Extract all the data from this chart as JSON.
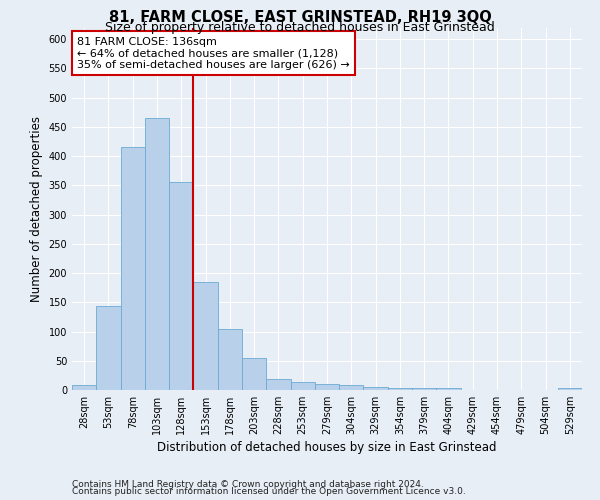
{
  "title": "81, FARM CLOSE, EAST GRINSTEAD, RH19 3QQ",
  "subtitle": "Size of property relative to detached houses in East Grinstead",
  "xlabel": "Distribution of detached houses by size in East Grinstead",
  "ylabel": "Number of detached properties",
  "categories": [
    "28sqm",
    "53sqm",
    "78sqm",
    "103sqm",
    "128sqm",
    "153sqm",
    "178sqm",
    "203sqm",
    "228sqm",
    "253sqm",
    "279sqm",
    "304sqm",
    "329sqm",
    "354sqm",
    "379sqm",
    "404sqm",
    "429sqm",
    "454sqm",
    "479sqm",
    "504sqm",
    "529sqm"
  ],
  "values": [
    9,
    143,
    415,
    465,
    355,
    185,
    104,
    54,
    18,
    13,
    10,
    9,
    5,
    4,
    4,
    3,
    0,
    0,
    0,
    0,
    3
  ],
  "bar_color": "#b8d0ea",
  "bar_edge_color": "#6aaad4",
  "vline_x_index": 4,
  "vline_color": "#cc0000",
  "annotation_text": "81 FARM CLOSE: 136sqm\n← 64% of detached houses are smaller (1,128)\n35% of semi-detached houses are larger (626) →",
  "annotation_box_color": "white",
  "annotation_box_edge": "#cc0000",
  "ylim": [
    0,
    620
  ],
  "yticks": [
    0,
    50,
    100,
    150,
    200,
    250,
    300,
    350,
    400,
    450,
    500,
    550,
    600
  ],
  "footer_line1": "Contains HM Land Registry data © Crown copyright and database right 2024.",
  "footer_line2": "Contains public sector information licensed under the Open Government Licence v3.0.",
  "bg_color": "#e8eef6",
  "grid_color": "#ffffff",
  "title_fontsize": 10.5,
  "subtitle_fontsize": 9,
  "tick_fontsize": 7,
  "label_fontsize": 8.5,
  "footer_fontsize": 6.5,
  "annot_fontsize": 8
}
